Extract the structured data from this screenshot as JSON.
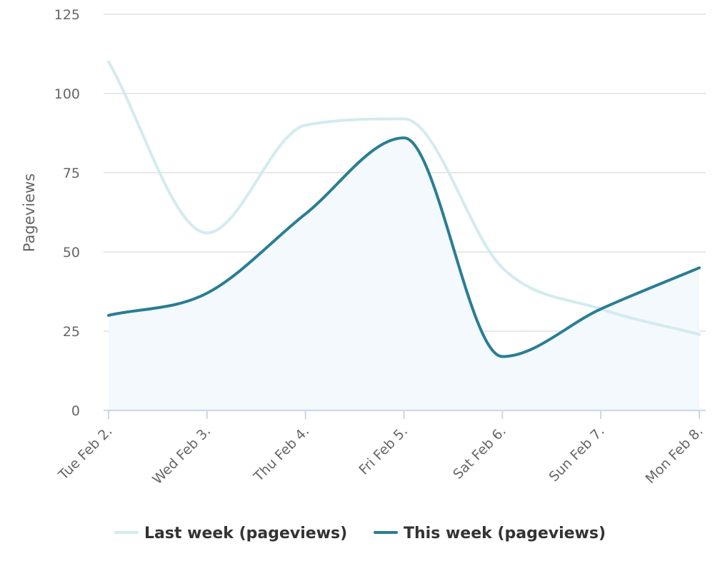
{
  "chart_data": {
    "type": "line",
    "title": "",
    "xlabel": "",
    "ylabel": "Pageviews",
    "categories": [
      "Tue Feb 2.",
      "Wed Feb 3.",
      "Thu Feb 4.",
      "Fri Feb 5.",
      "Sat Feb 6.",
      "Sun Feb 7.",
      "Mon Feb 8."
    ],
    "yticks": [
      "0",
      "25",
      "50",
      "75",
      "100",
      "125"
    ],
    "ylim": [
      0,
      125
    ],
    "grid": true,
    "legend_position": "bottom",
    "series": [
      {
        "name": "Last week (pageviews)",
        "values": [
          110,
          56,
          90,
          92,
          45,
          32,
          24
        ],
        "color": "#d3ebef",
        "area": false
      },
      {
        "name": "This week (pageviews)",
        "values": [
          30,
          37,
          62,
          86,
          17,
          32,
          45
        ],
        "color": "#2a7d94",
        "area": true,
        "area_color": "#f3f9fd"
      }
    ]
  }
}
